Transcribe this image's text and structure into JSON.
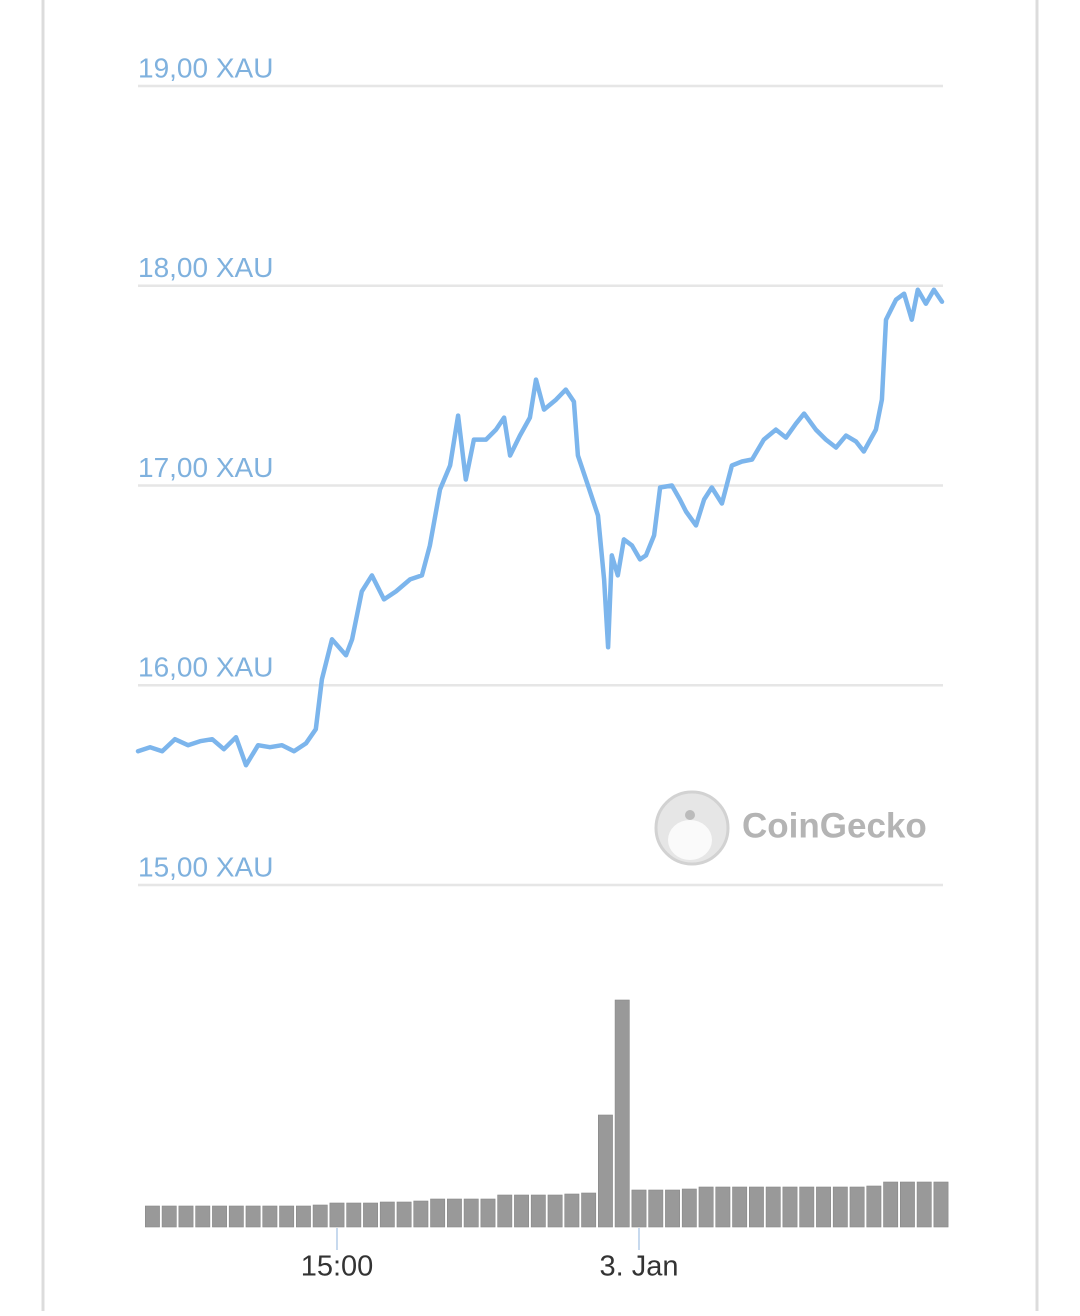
{
  "chart_data": [
    {
      "type": "line",
      "x": [
        9.07,
        9.43,
        9.79,
        10.17,
        10.56,
        10.92,
        11.28,
        11.63,
        11.99,
        12.29,
        12.65,
        13.0,
        13.36,
        13.72,
        14.08,
        14.37,
        14.55,
        14.85,
        15.27,
        15.45,
        15.74,
        16.04,
        16.4,
        16.76,
        17.18,
        17.53,
        17.77,
        18.07,
        18.37,
        18.61,
        18.84,
        19.08,
        19.44,
        19.74,
        19.98,
        20.16,
        20.45,
        20.75,
        20.93,
        21.17,
        21.53,
        21.82,
        22.06,
        22.18,
        22.48,
        22.78,
        22.96,
        23.08,
        23.19,
        23.37,
        23.55,
        23.79,
        24.03,
        24.21,
        24.45,
        24.63,
        24.98,
        25.22,
        25.4,
        25.7,
        25.94,
        26.17,
        26.47,
        26.77,
        27.07,
        27.37,
        27.72,
        28.08,
        28.38,
        28.68,
        28.92,
        29.27,
        29.57,
        29.87,
        30.17,
        30.47,
        30.7,
        31.06,
        31.24,
        31.36,
        31.66,
        31.9,
        32.13,
        32.31,
        32.55,
        32.79,
        33.03
      ],
      "values": [
        15.67,
        15.69,
        15.67,
        15.73,
        15.7,
        15.72,
        15.73,
        15.68,
        15.74,
        15.6,
        15.7,
        15.69,
        15.7,
        15.67,
        15.71,
        15.78,
        16.03,
        16.23,
        16.15,
        16.23,
        16.47,
        16.55,
        16.43,
        16.47,
        16.53,
        16.55,
        16.7,
        16.98,
        17.1,
        17.35,
        17.03,
        17.23,
        17.23,
        17.28,
        17.34,
        17.15,
        17.25,
        17.34,
        17.53,
        17.38,
        17.43,
        17.48,
        17.42,
        17.15,
        17.0,
        16.85,
        16.53,
        16.19,
        16.65,
        16.55,
        16.73,
        16.7,
        16.63,
        16.65,
        16.75,
        16.99,
        17.0,
        16.93,
        16.87,
        16.8,
        16.93,
        16.99,
        16.91,
        17.1,
        17.12,
        17.13,
        17.23,
        17.28,
        17.24,
        17.31,
        17.36,
        17.28,
        17.23,
        17.19,
        17.25,
        17.22,
        17.17,
        17.28,
        17.43,
        17.83,
        17.93,
        17.96,
        17.83,
        17.98,
        17.91,
        17.98,
        17.92
      ],
      "color": "#7cb5ec",
      "xlim": [
        9.07,
        33.06
      ],
      "xticks": [
        {
          "value": 15,
          "label": "15:00"
        },
        {
          "value": 24,
          "label": "3. Jan"
        }
      ],
      "ylim": [
        15,
        19
      ],
      "yticks": [
        {
          "value": 15,
          "label": "15,00 XAU"
        },
        {
          "value": 16,
          "label": "16,00 XAU"
        },
        {
          "value": 17,
          "label": "17,00 XAU"
        },
        {
          "value": 18,
          "label": "18,00 XAU"
        },
        {
          "value": 19,
          "label": "19,00 XAU"
        }
      ],
      "grid": true,
      "watermark": "CoinGecko"
    },
    {
      "type": "bar",
      "x": [
        9.5,
        10.0,
        10.5,
        11.0,
        11.5,
        12.0,
        12.5,
        13.0,
        13.5,
        14.0,
        14.5,
        15.0,
        15.5,
        16.0,
        16.5,
        17.0,
        17.5,
        18.0,
        18.5,
        19.0,
        19.5,
        20.0,
        20.5,
        21.0,
        21.5,
        22.0,
        22.5,
        23.0,
        23.5,
        24.0,
        24.5,
        25.0,
        25.5,
        26.0,
        26.5,
        27.0,
        27.5,
        28.0,
        28.5,
        29.0,
        29.5,
        30.0,
        30.5,
        31.0,
        31.5,
        32.0,
        32.5,
        33.0
      ],
      "values": [
        21,
        21,
        21,
        21,
        21,
        21,
        21,
        21,
        21,
        21,
        22,
        24,
        24,
        24,
        25,
        25,
        26,
        28,
        28,
        28,
        28,
        32,
        32,
        32,
        32,
        33,
        34,
        112,
        227,
        37,
        37,
        37,
        38,
        40,
        40,
        40,
        40,
        40,
        40,
        40,
        40,
        40,
        40,
        41,
        45,
        45,
        45,
        45
      ],
      "color": "#999999",
      "xlim": [
        9.07,
        33.06
      ],
      "ylim": [
        0,
        250
      ]
    }
  ]
}
